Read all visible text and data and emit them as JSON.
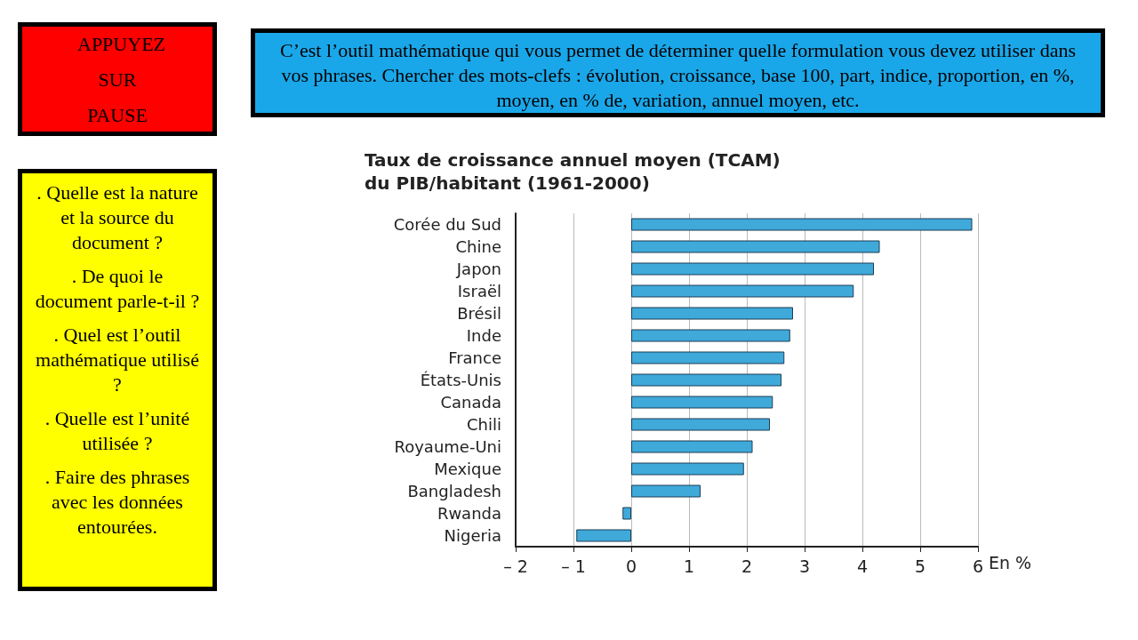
{
  "chart_data": {
    "type": "bar",
    "orientation": "horizontal",
    "title": "Taux de croissance annuel moyen (TCAM)\ndu PIB/habitant (1961-2000)",
    "xlabel": "En %",
    "categories": [
      "Corée du Sud",
      "Chine",
      "Japon",
      "Israël",
      "Brésil",
      "Inde",
      "France",
      "États-Unis",
      "Canada",
      "Chili",
      "Royaume-Uni",
      "Mexique",
      "Bangladesh",
      "Rwanda",
      "Nigeria"
    ],
    "values": [
      5.9,
      4.3,
      4.2,
      3.85,
      2.8,
      2.75,
      2.65,
      2.6,
      2.45,
      2.4,
      2.1,
      1.95,
      1.2,
      -0.15,
      -0.95
    ],
    "color": "#3fa9da",
    "xlim": [
      -2,
      6
    ],
    "xticks": [
      {
        "value": -2,
        "label": "– 2"
      },
      {
        "value": -1,
        "label": "– 1"
      },
      0,
      1,
      2,
      3,
      4,
      5,
      6
    ],
    "grid": "x",
    "annotations": [
      "APPUYEZ SUR PAUSE",
      "C’est l’outil mathématique qui vous permet de déterminer quelle formulation vous devez utiliser dans vos phrases. Chercher des mots-clefs : évolution, croissance, base 100, part, indice, proportion, en %, moyen, en % de, variation, annuel moyen, etc.",
      ". Quelle est la nature et la source du document ?",
      ". De quoi le document parle-t-il ?",
      ". Quel est l’outil mathématique utilisé ?",
      ". Quelle est l’unité utilisée ?",
      ". Faire des phrases avec les données entourées."
    ]
  }
}
